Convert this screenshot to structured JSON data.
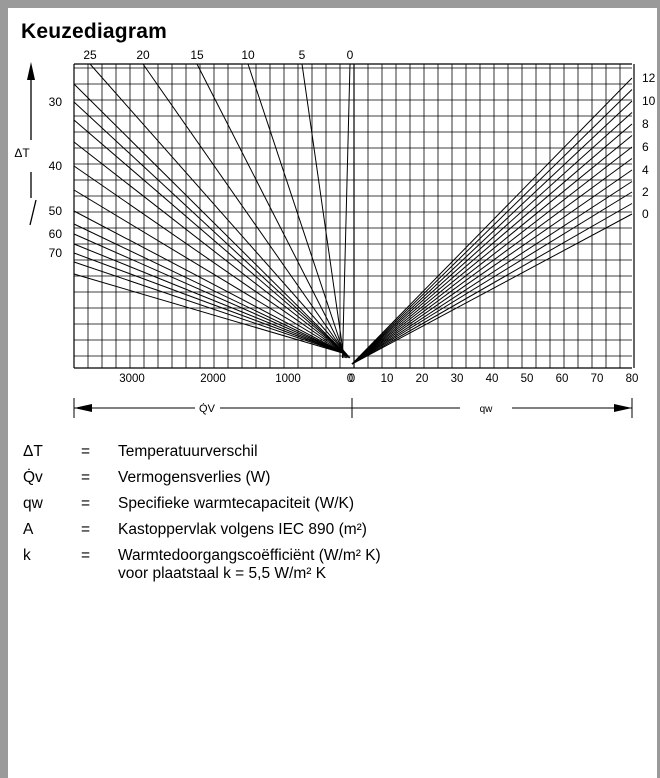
{
  "title": "Keuzediagram",
  "chart_data": {
    "type": "nomogram",
    "delta_t_axis": {
      "label": "ΔT",
      "ticks": [
        "30",
        "40",
        "50",
        "60",
        "70"
      ]
    },
    "a_values": [
      "25",
      "20",
      "15",
      "10",
      "5",
      "0"
    ],
    "k_values": [
      "12",
      "10",
      "8",
      "6",
      "4",
      "2",
      "0"
    ],
    "qv_axis": {
      "label": "Q̇V",
      "ticks": [
        "3000",
        "2000",
        "1000",
        "0"
      ]
    },
    "qw_axis": {
      "label": "qw",
      "ticks": [
        "0",
        "10",
        "20",
        "30",
        "40",
        "50",
        "60",
        "70",
        "80"
      ]
    }
  },
  "legend": [
    {
      "symbol": "ΔT",
      "eq": "=",
      "text": "Temperatuurverschil"
    },
    {
      "symbol": "Q̇v",
      "eq": "=",
      "text": "Vermogensverlies (W)"
    },
    {
      "symbol": "qw",
      "eq": "=",
      "text": "Specifieke warmtecapaciteit (W/K)"
    },
    {
      "symbol": "A",
      "eq": "=",
      "text": "Kastoppervlak volgens IEC 890 (m²)"
    },
    {
      "symbol": "k",
      "eq": "=",
      "text": "Warmtedoorgangscoëfficiënt (W/m² K)\nvoor plaatstaal k = 5,5 W/m² K"
    }
  ]
}
